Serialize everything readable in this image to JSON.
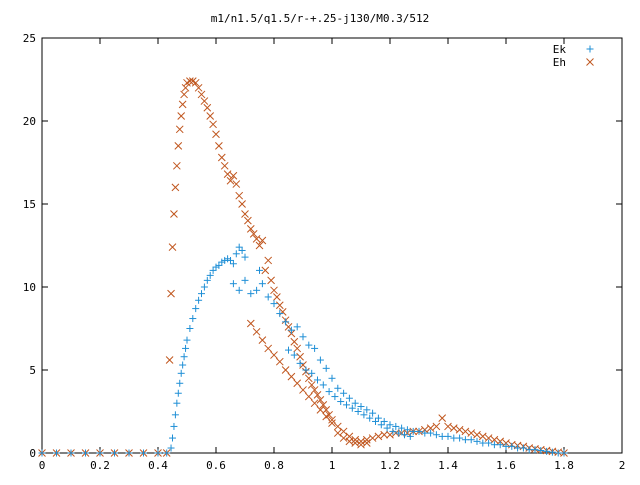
{
  "chart_data": {
    "type": "scatter",
    "title": "m1/n1.5/q1.5/r-+.25-j130/M0.3/512",
    "xlabel": "",
    "ylabel": "",
    "xlim": [
      0,
      2
    ],
    "ylim": [
      0,
      25
    ],
    "x_ticks": [
      "0",
      "0.2",
      "0.4",
      "0.6",
      "0.8",
      "1",
      "1.2",
      "1.4",
      "1.6",
      "1.8",
      "2"
    ],
    "y_ticks": [
      "0",
      "5",
      "10",
      "15",
      "20",
      "25"
    ],
    "legend_position": "top-right",
    "grid": false,
    "series": [
      {
        "name": "Ek",
        "marker": "plus",
        "color": "#1f8fd6",
        "points": [
          [
            0.0,
            0
          ],
          [
            0.05,
            0
          ],
          [
            0.1,
            0
          ],
          [
            0.15,
            0
          ],
          [
            0.2,
            0
          ],
          [
            0.25,
            0
          ],
          [
            0.3,
            0
          ],
          [
            0.35,
            0
          ],
          [
            0.4,
            0
          ],
          [
            0.43,
            0
          ],
          [
            0.445,
            0.3
          ],
          [
            0.45,
            0.9
          ],
          [
            0.455,
            1.6
          ],
          [
            0.46,
            2.3
          ],
          [
            0.465,
            3.0
          ],
          [
            0.47,
            3.6
          ],
          [
            0.475,
            4.2
          ],
          [
            0.48,
            4.8
          ],
          [
            0.485,
            5.3
          ],
          [
            0.49,
            5.8
          ],
          [
            0.495,
            6.3
          ],
          [
            0.5,
            6.8
          ],
          [
            0.51,
            7.5
          ],
          [
            0.52,
            8.1
          ],
          [
            0.53,
            8.7
          ],
          [
            0.54,
            9.2
          ],
          [
            0.55,
            9.6
          ],
          [
            0.56,
            10.0
          ],
          [
            0.57,
            10.4
          ],
          [
            0.58,
            10.7
          ],
          [
            0.59,
            11.0
          ],
          [
            0.6,
            11.2
          ],
          [
            0.61,
            11.3
          ],
          [
            0.62,
            11.5
          ],
          [
            0.63,
            11.6
          ],
          [
            0.64,
            11.7
          ],
          [
            0.65,
            11.6
          ],
          [
            0.66,
            11.4
          ],
          [
            0.67,
            12.0
          ],
          [
            0.68,
            12.4
          ],
          [
            0.69,
            12.2
          ],
          [
            0.7,
            11.8
          ],
          [
            0.66,
            10.2
          ],
          [
            0.68,
            9.8
          ],
          [
            0.7,
            10.4
          ],
          [
            0.72,
            9.6
          ],
          [
            0.74,
            9.8
          ],
          [
            0.75,
            11.0
          ],
          [
            0.76,
            10.2
          ],
          [
            0.78,
            9.4
          ],
          [
            0.8,
            9.0
          ],
          [
            0.82,
            8.4
          ],
          [
            0.84,
            7.9
          ],
          [
            0.86,
            7.4
          ],
          [
            0.88,
            7.6
          ],
          [
            0.9,
            7.0
          ],
          [
            0.92,
            6.5
          ],
          [
            0.94,
            6.3
          ],
          [
            0.96,
            5.6
          ],
          [
            0.98,
            5.1
          ],
          [
            1.0,
            4.5
          ],
          [
            1.02,
            3.9
          ],
          [
            1.04,
            3.6
          ],
          [
            1.06,
            3.3
          ],
          [
            1.08,
            3.0
          ],
          [
            1.1,
            2.8
          ],
          [
            1.12,
            2.6
          ],
          [
            1.14,
            2.4
          ],
          [
            1.16,
            2.1
          ],
          [
            1.18,
            1.9
          ],
          [
            1.2,
            1.7
          ],
          [
            1.22,
            1.6
          ],
          [
            1.24,
            1.5
          ],
          [
            1.26,
            1.4
          ],
          [
            1.28,
            1.3
          ],
          [
            1.3,
            1.3
          ],
          [
            1.32,
            1.2
          ],
          [
            1.34,
            1.2
          ],
          [
            1.36,
            1.1
          ],
          [
            1.38,
            1.0
          ],
          [
            1.4,
            1.0
          ],
          [
            1.42,
            0.9
          ],
          [
            1.44,
            0.9
          ],
          [
            1.46,
            0.8
          ],
          [
            1.48,
            0.8
          ],
          [
            1.5,
            0.7
          ],
          [
            1.52,
            0.6
          ],
          [
            1.54,
            0.6
          ],
          [
            1.56,
            0.5
          ],
          [
            1.58,
            0.5
          ],
          [
            1.6,
            0.4
          ],
          [
            1.62,
            0.4
          ],
          [
            1.64,
            0.3
          ],
          [
            1.66,
            0.3
          ],
          [
            1.68,
            0.2
          ],
          [
            1.7,
            0.2
          ],
          [
            1.72,
            0.15
          ],
          [
            1.74,
            0.1
          ],
          [
            1.76,
            0.05
          ],
          [
            1.78,
            0.0
          ],
          [
            1.8,
            0.0
          ],
          [
            0.85,
            6.2
          ],
          [
            0.87,
            5.9
          ],
          [
            0.89,
            5.4
          ],
          [
            0.91,
            5.0
          ],
          [
            0.93,
            4.8
          ],
          [
            0.95,
            4.4
          ],
          [
            0.97,
            4.1
          ],
          [
            0.99,
            3.7
          ],
          [
            1.01,
            3.4
          ],
          [
            1.03,
            3.1
          ],
          [
            1.05,
            2.9
          ],
          [
            1.07,
            2.7
          ],
          [
            1.09,
            2.5
          ],
          [
            1.11,
            2.3
          ],
          [
            1.13,
            2.1
          ],
          [
            1.15,
            1.9
          ],
          [
            1.17,
            1.7
          ],
          [
            1.19,
            1.5
          ],
          [
            1.21,
            1.3
          ],
          [
            1.23,
            1.2
          ],
          [
            1.25,
            1.1
          ],
          [
            1.27,
            1.0
          ]
        ]
      },
      {
        "name": "Eh",
        "marker": "cross",
        "color": "#c0561e",
        "points": [
          [
            0.0,
            0
          ],
          [
            0.05,
            0
          ],
          [
            0.1,
            0
          ],
          [
            0.15,
            0
          ],
          [
            0.2,
            0
          ],
          [
            0.25,
            0
          ],
          [
            0.3,
            0
          ],
          [
            0.35,
            0
          ],
          [
            0.4,
            0
          ],
          [
            0.43,
            0
          ],
          [
            0.44,
            5.6
          ],
          [
            0.445,
            9.6
          ],
          [
            0.45,
            12.4
          ],
          [
            0.455,
            14.4
          ],
          [
            0.46,
            16.0
          ],
          [
            0.465,
            17.3
          ],
          [
            0.47,
            18.5
          ],
          [
            0.475,
            19.5
          ],
          [
            0.48,
            20.3
          ],
          [
            0.485,
            21.0
          ],
          [
            0.49,
            21.6
          ],
          [
            0.495,
            22.0
          ],
          [
            0.5,
            22.3
          ],
          [
            0.51,
            22.4
          ],
          [
            0.52,
            22.4
          ],
          [
            0.53,
            22.3
          ],
          [
            0.54,
            22.0
          ],
          [
            0.55,
            21.6
          ],
          [
            0.56,
            21.2
          ],
          [
            0.57,
            20.8
          ],
          [
            0.58,
            20.3
          ],
          [
            0.59,
            19.8
          ],
          [
            0.6,
            19.2
          ],
          [
            0.61,
            18.5
          ],
          [
            0.62,
            17.8
          ],
          [
            0.63,
            17.3
          ],
          [
            0.64,
            16.8
          ],
          [
            0.65,
            16.4
          ],
          [
            0.66,
            16.7
          ],
          [
            0.67,
            16.2
          ],
          [
            0.68,
            15.5
          ],
          [
            0.69,
            15.0
          ],
          [
            0.7,
            14.4
          ],
          [
            0.71,
            14.0
          ],
          [
            0.72,
            13.5
          ],
          [
            0.73,
            13.2
          ],
          [
            0.74,
            12.9
          ],
          [
            0.75,
            12.5
          ],
          [
            0.76,
            12.8
          ],
          [
            0.77,
            11.0
          ],
          [
            0.78,
            11.6
          ],
          [
            0.79,
            10.4
          ],
          [
            0.8,
            9.8
          ],
          [
            0.81,
            9.4
          ],
          [
            0.82,
            8.9
          ],
          [
            0.83,
            8.5
          ],
          [
            0.84,
            8.0
          ],
          [
            0.85,
            7.6
          ],
          [
            0.86,
            7.2
          ],
          [
            0.87,
            6.7
          ],
          [
            0.88,
            6.3
          ],
          [
            0.89,
            5.8
          ],
          [
            0.9,
            5.3
          ],
          [
            0.91,
            4.9
          ],
          [
            0.92,
            4.5
          ],
          [
            0.93,
            4.1
          ],
          [
            0.94,
            3.8
          ],
          [
            0.95,
            3.5
          ],
          [
            0.96,
            3.2
          ],
          [
            0.97,
            2.9
          ],
          [
            0.98,
            2.6
          ],
          [
            0.99,
            2.3
          ],
          [
            1.0,
            2.0
          ],
          [
            1.02,
            1.6
          ],
          [
            1.04,
            1.3
          ],
          [
            1.06,
            1.0
          ],
          [
            1.08,
            0.8
          ],
          [
            1.1,
            0.7
          ],
          [
            1.12,
            0.8
          ],
          [
            1.14,
            0.9
          ],
          [
            1.16,
            1.0
          ],
          [
            1.18,
            1.1
          ],
          [
            1.2,
            1.1
          ],
          [
            1.22,
            1.2
          ],
          [
            1.24,
            1.2
          ],
          [
            1.26,
            1.2
          ],
          [
            1.28,
            1.3
          ],
          [
            1.3,
            1.3
          ],
          [
            1.32,
            1.4
          ],
          [
            1.34,
            1.5
          ],
          [
            1.36,
            1.6
          ],
          [
            1.38,
            2.1
          ],
          [
            1.4,
            1.6
          ],
          [
            1.42,
            1.5
          ],
          [
            1.44,
            1.4
          ],
          [
            1.46,
            1.3
          ],
          [
            1.48,
            1.2
          ],
          [
            1.5,
            1.1
          ],
          [
            1.52,
            1.0
          ],
          [
            1.54,
            0.9
          ],
          [
            1.56,
            0.8
          ],
          [
            1.58,
            0.7
          ],
          [
            1.6,
            0.6
          ],
          [
            1.62,
            0.5
          ],
          [
            1.64,
            0.45
          ],
          [
            1.66,
            0.4
          ],
          [
            1.68,
            0.3
          ],
          [
            1.7,
            0.25
          ],
          [
            1.72,
            0.2
          ],
          [
            1.74,
            0.15
          ],
          [
            1.76,
            0.1
          ],
          [
            1.78,
            0.05
          ],
          [
            1.8,
            0.0
          ],
          [
            0.72,
            7.8
          ],
          [
            0.74,
            7.3
          ],
          [
            0.76,
            6.8
          ],
          [
            0.78,
            6.3
          ],
          [
            0.8,
            5.9
          ],
          [
            0.82,
            5.5
          ],
          [
            0.84,
            5.0
          ],
          [
            0.86,
            4.6
          ],
          [
            0.88,
            4.2
          ],
          [
            0.9,
            3.8
          ],
          [
            0.92,
            3.4
          ],
          [
            0.94,
            3.0
          ],
          [
            0.96,
            2.6
          ],
          [
            0.98,
            2.2
          ],
          [
            1.0,
            1.8
          ],
          [
            1.02,
            1.2
          ],
          [
            1.04,
            0.9
          ],
          [
            1.06,
            0.7
          ],
          [
            1.08,
            0.6
          ],
          [
            1.1,
            0.5
          ],
          [
            1.12,
            0.6
          ]
        ]
      }
    ]
  }
}
